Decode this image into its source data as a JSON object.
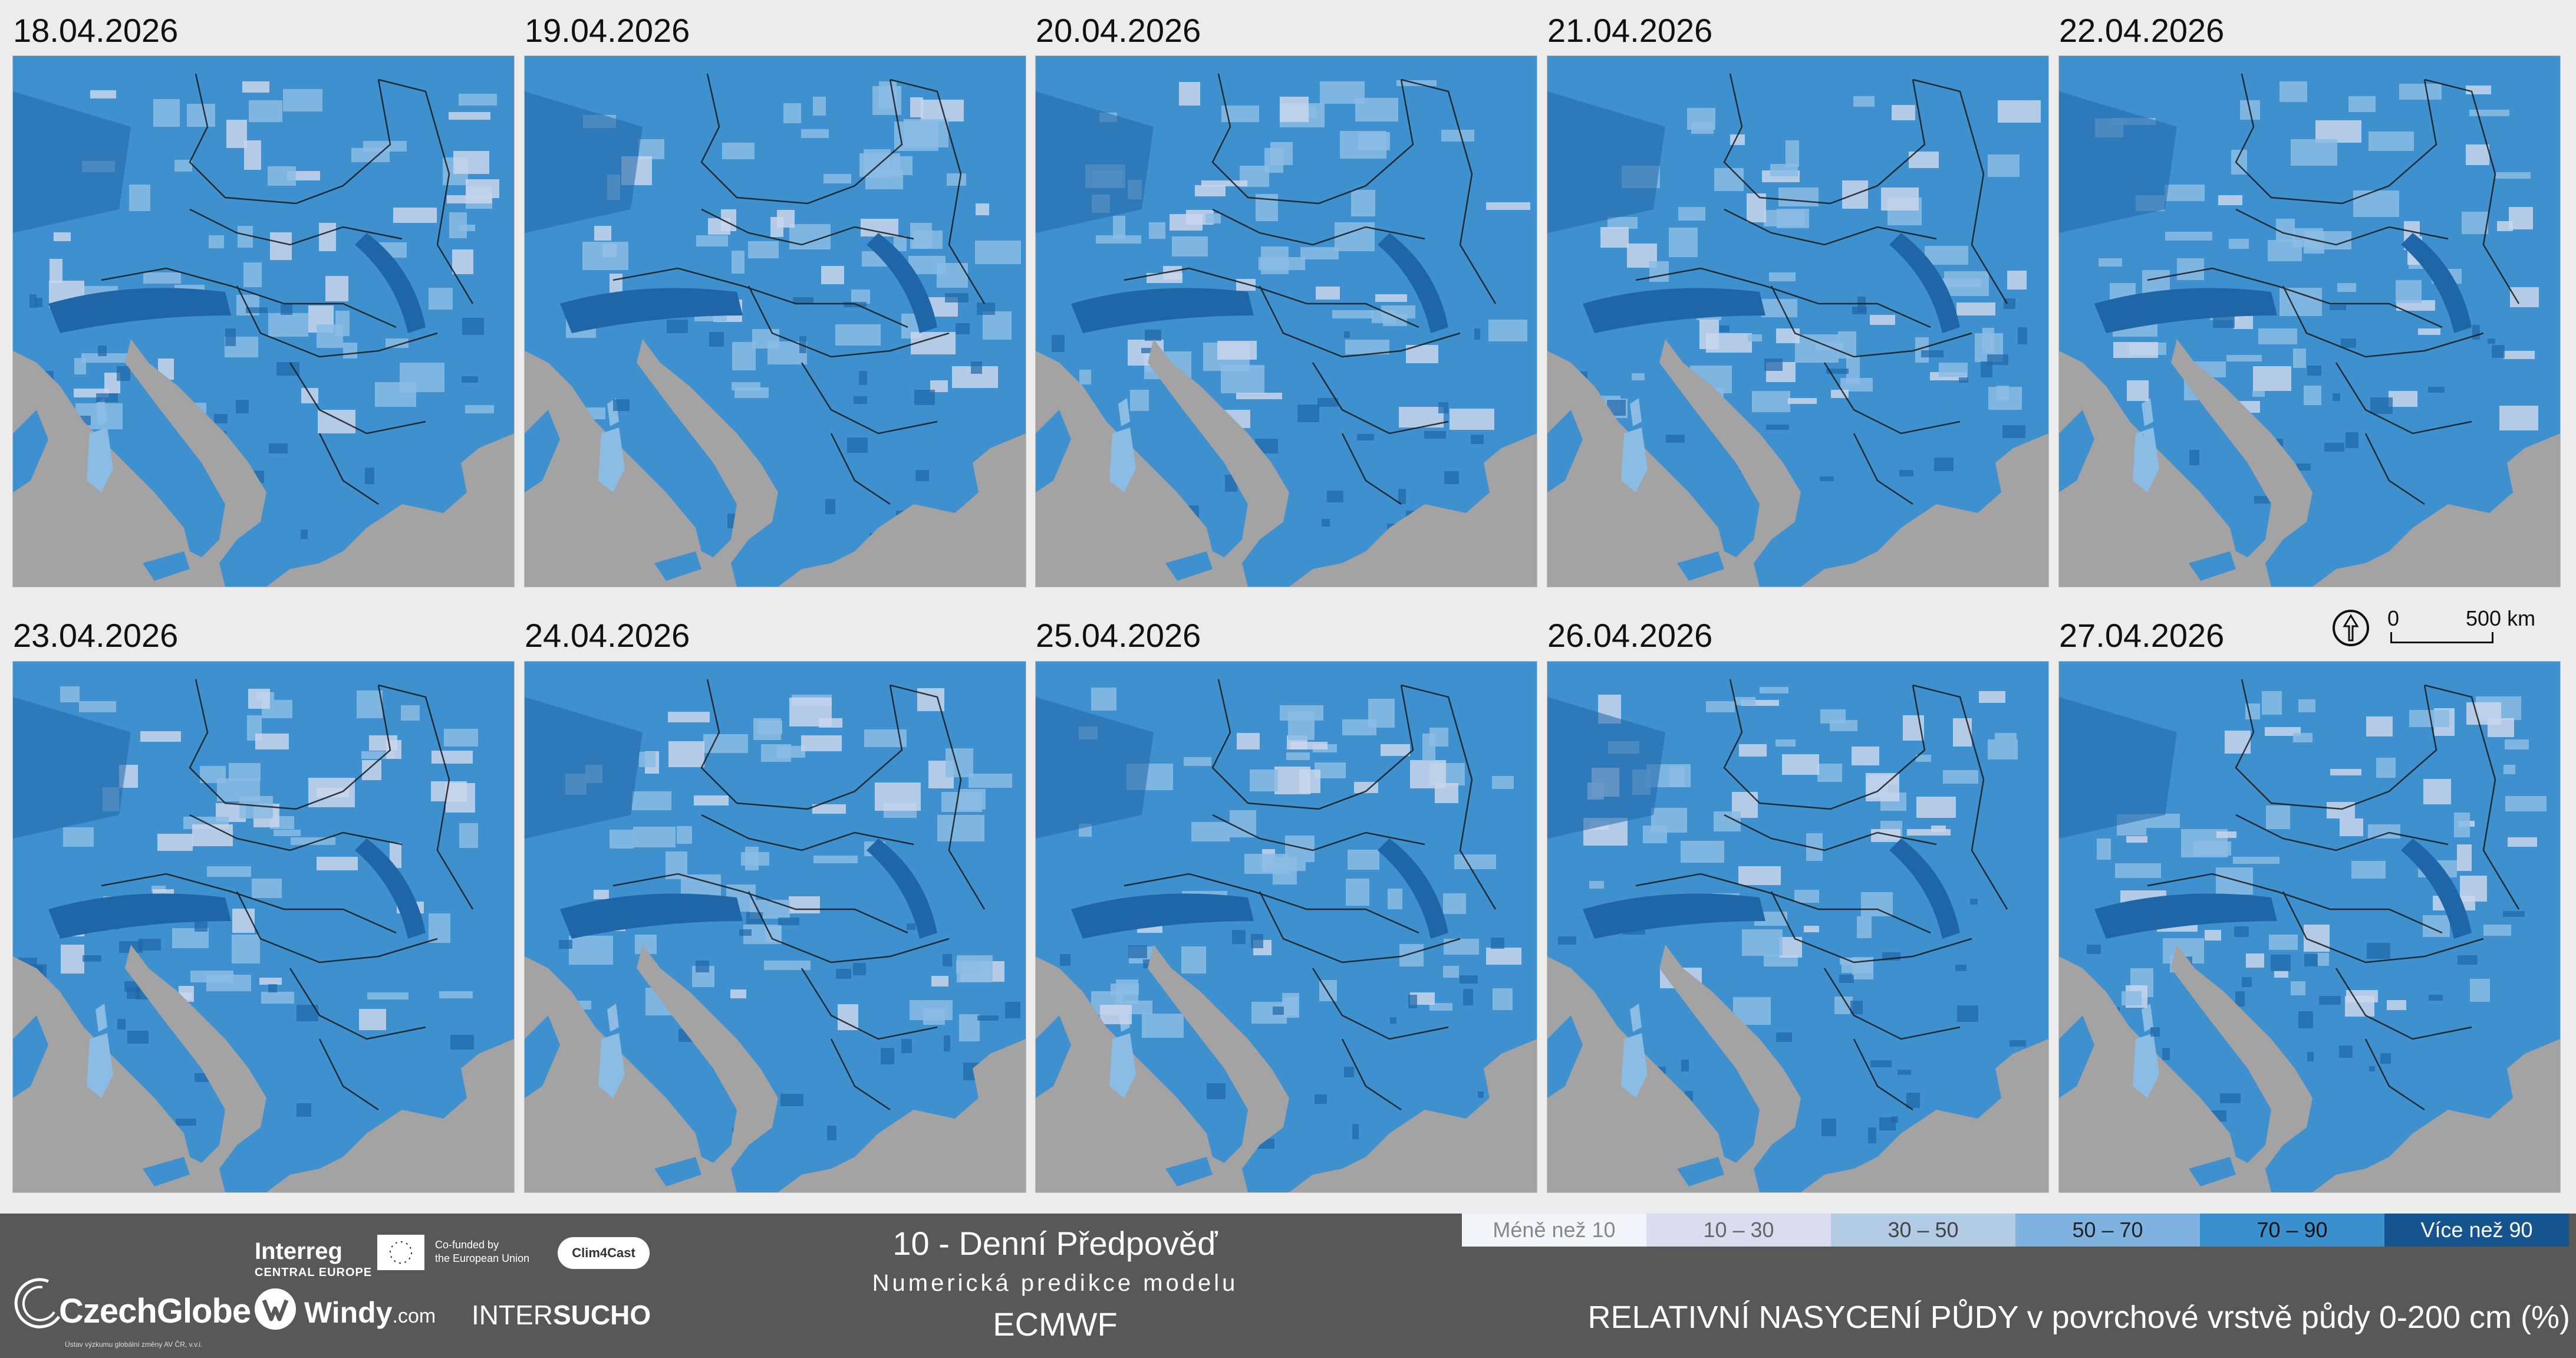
{
  "panels": [
    {
      "date": "18.04.2026"
    },
    {
      "date": "19.04.2026"
    },
    {
      "date": "20.04.2026"
    },
    {
      "date": "21.04.2026"
    },
    {
      "date": "22.04.2026"
    },
    {
      "date": "23.04.2026"
    },
    {
      "date": "24.04.2026"
    },
    {
      "date": "25.04.2026"
    },
    {
      "date": "26.04.2026"
    },
    {
      "date": "27.04.2026"
    }
  ],
  "scale": {
    "zero": "0",
    "max": "500 km",
    "icon": "north-arrow-icon"
  },
  "footer": {
    "czechglobe": {
      "name": "CzechGlobe",
      "subtitle": "Ústav výzkumu globální změny AV ČR, v.v.i."
    },
    "interreg": {
      "title": "Interreg",
      "subtitle": "CENTRAL EUROPE"
    },
    "eu": {
      "line1": "Co-funded by",
      "line2": "the European Union"
    },
    "clim4cast": "Clim4Cast",
    "windy": {
      "name": "Windy",
      "suffix": ".com"
    },
    "intersucho": {
      "prefix": "INTER",
      "suffix": "SUCHO"
    },
    "forecast_title": "10 - Denní Předpověď",
    "forecast_subtitle": "Numerická predikce modelu",
    "forecast_model": "ECMWF",
    "legend_title": "RELATIVNÍ NASYCENÍ PŮDY  v povrchové vrstvě půdy 0-200 cm (%)"
  },
  "legend": [
    {
      "label": "Méně než 10",
      "color": "#f4f4fb",
      "text_color": "#888888"
    },
    {
      "label": "10 – 30",
      "color": "#dcdcf0",
      "text_color": "#666666"
    },
    {
      "label": "30 – 50",
      "color": "#b3cce6",
      "text_color": "#444444"
    },
    {
      "label": "50 – 70",
      "color": "#7fb2df",
      "text_color": "#222222"
    },
    {
      "label": "70 – 90",
      "color": "#3a8fcd",
      "text_color": "#111111"
    },
    {
      "label": "Více než 90",
      "color": "#15548f",
      "text_color": "#ffffff"
    }
  ],
  "colors": {
    "land_mid": "#3e90cf",
    "land_dark": "#1f66a8",
    "land_light": "#8bbce4",
    "land_lightest": "#c9d6ec",
    "sea": "#a3a3a3"
  }
}
